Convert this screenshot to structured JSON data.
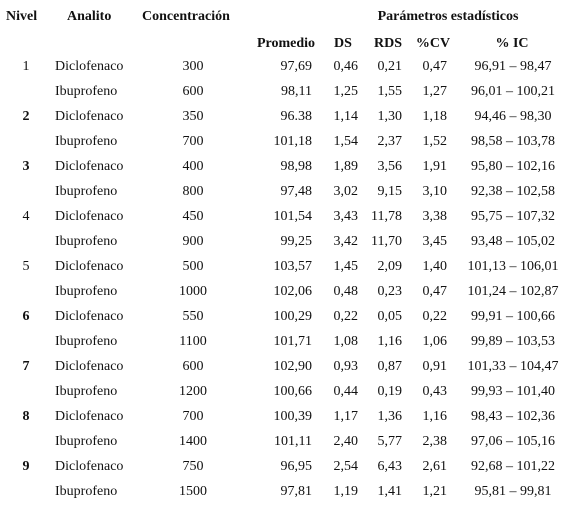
{
  "table": {
    "headers": {
      "nivel": "Nivel",
      "analito": "Analito",
      "concentracion": "Concentración",
      "parametros": "Parámetros estadísticos",
      "sub": [
        "Promedio",
        "DS",
        "RDS",
        "%CV",
        "% IC"
      ]
    },
    "levels": [
      {
        "nivel": "1",
        "rows": [
          [
            "Diclofenaco",
            "300",
            "97,69",
            "0,46",
            "0,21",
            "0,47",
            "96,91 – 98,47"
          ],
          [
            "Ibuprofeno",
            "600",
            "98,11",
            "1,25",
            "1,55",
            "1,27",
            "96,01 – 100,21"
          ]
        ]
      },
      {
        "nivel": "2",
        "rows": [
          [
            "Diclofenaco",
            "350",
            "96.38",
            "1,14",
            "1,30",
            "1,18",
            "94,46 – 98,30"
          ],
          [
            "Ibuprofeno",
            "700",
            "101,18",
            "1,54",
            "2,37",
            "1,52",
            "98,58 – 103,78"
          ]
        ]
      },
      {
        "nivel": "3",
        "rows": [
          [
            "Diclofenaco",
            "400",
            "98,98",
            "1,89",
            "3,56",
            "1,91",
            "95,80 – 102,16"
          ],
          [
            "Ibuprofeno",
            "800",
            "97,48",
            "3,02",
            "9,15",
            "3,10",
            "92,38 – 102,58"
          ]
        ]
      },
      {
        "nivel": "4",
        "rows": [
          [
            "Diclofenaco",
            "450",
            "101,54",
            "3,43",
            "11,78",
            "3,38",
            "95,75 – 107,32"
          ],
          [
            "Ibuprofeno",
            "900",
            "99,25",
            "3,42",
            "11,70",
            "3,45",
            "93,48 – 105,02"
          ]
        ]
      },
      {
        "nivel": "5",
        "rows": [
          [
            "Diclofenaco",
            "500",
            "103,57",
            "1,45",
            "2,09",
            "1,40",
            "101,13 – 106,01"
          ],
          [
            "Ibuprofeno",
            "1000",
            "102,06",
            "0,48",
            "0,23",
            "0,47",
            "101,24 – 102,87"
          ]
        ]
      },
      {
        "nivel": "6",
        "rows": [
          [
            "Diclofenaco",
            "550",
            "100,29",
            "0,22",
            "0,05",
            "0,22",
            "99,91 – 100,66"
          ],
          [
            "Ibuprofeno",
            "1100",
            "101,71",
            "1,08",
            "1,16",
            "1,06",
            "99,89 – 103,53"
          ]
        ]
      },
      {
        "nivel": "7",
        "rows": [
          [
            "Diclofenaco",
            "600",
            "102,90",
            "0,93",
            "0,87",
            "0,91",
            "101,33 – 104,47"
          ],
          [
            "Ibuprofeno",
            "1200",
            "100,66",
            "0,44",
            "0,19",
            "0,43",
            "99,93 – 101,40"
          ]
        ]
      },
      {
        "nivel": "8",
        "rows": [
          [
            "Diclofenaco",
            "700",
            "100,39",
            "1,17",
            "1,36",
            "1,16",
            "98,43 – 102,36"
          ],
          [
            "Ibuprofeno",
            "1400",
            "101,11",
            "2,40",
            "5,77",
            "2,38",
            "97,06 – 105,16"
          ]
        ]
      },
      {
        "nivel": "9",
        "rows": [
          [
            "Diclofenaco",
            "750",
            "96,95",
            "2,54",
            "6,43",
            "2,61",
            "92,68 – 101,22"
          ],
          [
            "Ibuprofeno",
            "1500",
            "97,81",
            "1,19",
            "1,41",
            "1,21",
            "95,81 – 99,81"
          ]
        ]
      }
    ]
  }
}
